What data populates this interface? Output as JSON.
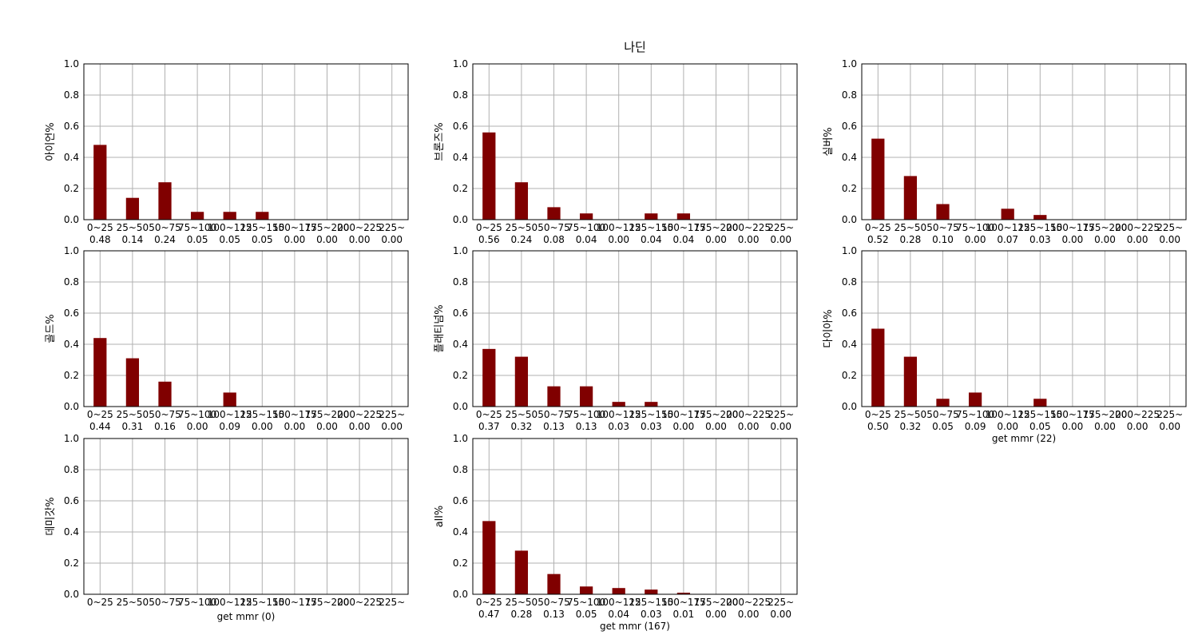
{
  "figure_title": "나딘",
  "chart_data": [
    {
      "type": "bar",
      "ylabel": "아이언%",
      "xlabel": "",
      "ylim": [
        0,
        1
      ],
      "yticks": [
        "0.0",
        "0.2",
        "0.4",
        "0.6",
        "0.8",
        "1.0"
      ],
      "categories": [
        "0~25",
        "25~50",
        "50~75",
        "75~100",
        "100~125",
        "125~150",
        "150~175",
        "175~200",
        "200~225",
        "225~"
      ],
      "values": [
        0.48,
        0.14,
        0.24,
        0.05,
        0.05,
        0.05,
        0.0,
        0.0,
        0.0,
        0.0
      ],
      "value_labels": [
        "0.48",
        "0.14",
        "0.24",
        "0.05",
        "0.05",
        "0.05",
        "0.00",
        "0.00",
        "0.00",
        "0.00"
      ],
      "grid": true
    },
    {
      "type": "bar",
      "ylabel": "브론즈%",
      "xlabel": "",
      "ylim": [
        0,
        1
      ],
      "yticks": [
        "0.0",
        "0.2",
        "0.4",
        "0.6",
        "0.8",
        "1.0"
      ],
      "categories": [
        "0~25",
        "25~50",
        "50~75",
        "75~100",
        "100~125",
        "125~150",
        "150~175",
        "175~200",
        "200~225",
        "225~"
      ],
      "values": [
        0.56,
        0.24,
        0.08,
        0.04,
        0.0,
        0.04,
        0.04,
        0.0,
        0.0,
        0.0
      ],
      "value_labels": [
        "0.56",
        "0.24",
        "0.08",
        "0.04",
        "0.00",
        "0.04",
        "0.04",
        "0.00",
        "0.00",
        "0.00"
      ],
      "grid": true
    },
    {
      "type": "bar",
      "ylabel": "실버%",
      "xlabel": "",
      "ylim": [
        0,
        1
      ],
      "yticks": [
        "0.0",
        "0.2",
        "0.4",
        "0.6",
        "0.8",
        "1.0"
      ],
      "categories": [
        "0~25",
        "25~50",
        "50~75",
        "75~100",
        "100~125",
        "125~150",
        "150~175",
        "175~200",
        "200~225",
        "225~"
      ],
      "values": [
        0.52,
        0.28,
        0.1,
        0.0,
        0.07,
        0.03,
        0.0,
        0.0,
        0.0,
        0.0
      ],
      "value_labels": [
        "0.52",
        "0.28",
        "0.10",
        "0.00",
        "0.07",
        "0.03",
        "0.00",
        "0.00",
        "0.00",
        "0.00"
      ],
      "grid": true
    },
    {
      "type": "bar",
      "ylabel": "골드%",
      "xlabel": "",
      "ylim": [
        0,
        1
      ],
      "yticks": [
        "0.0",
        "0.2",
        "0.4",
        "0.6",
        "0.8",
        "1.0"
      ],
      "categories": [
        "0~25",
        "25~50",
        "50~75",
        "75~100",
        "100~125",
        "125~150",
        "150~175",
        "175~200",
        "200~225",
        "225~"
      ],
      "values": [
        0.44,
        0.31,
        0.16,
        0.0,
        0.09,
        0.0,
        0.0,
        0.0,
        0.0,
        0.0
      ],
      "value_labels": [
        "0.44",
        "0.31",
        "0.16",
        "0.00",
        "0.09",
        "0.00",
        "0.00",
        "0.00",
        "0.00",
        "0.00"
      ],
      "grid": true
    },
    {
      "type": "bar",
      "ylabel": "플래티넘%",
      "xlabel": "",
      "ylim": [
        0,
        1
      ],
      "yticks": [
        "0.0",
        "0.2",
        "0.4",
        "0.6",
        "0.8",
        "1.0"
      ],
      "categories": [
        "0~25",
        "25~50",
        "50~75",
        "75~100",
        "100~125",
        "125~150",
        "150~175",
        "175~200",
        "200~225",
        "225~"
      ],
      "values": [
        0.37,
        0.32,
        0.13,
        0.13,
        0.03,
        0.03,
        0.0,
        0.0,
        0.0,
        0.0
      ],
      "value_labels": [
        "0.37",
        "0.32",
        "0.13",
        "0.13",
        "0.03",
        "0.03",
        "0.00",
        "0.00",
        "0.00",
        "0.00"
      ],
      "grid": true
    },
    {
      "type": "bar",
      "ylabel": "다이아%",
      "xlabel": "get mmr (22)",
      "ylim": [
        0,
        1
      ],
      "yticks": [
        "0.0",
        "0.2",
        "0.4",
        "0.6",
        "0.8",
        "1.0"
      ],
      "categories": [
        "0~25",
        "25~50",
        "50~75",
        "75~100",
        "100~125",
        "125~150",
        "150~175",
        "175~200",
        "200~225",
        "225~"
      ],
      "values": [
        0.5,
        0.32,
        0.05,
        0.09,
        0.0,
        0.05,
        0.0,
        0.0,
        0.0,
        0.0
      ],
      "value_labels": [
        "0.50",
        "0.32",
        "0.05",
        "0.09",
        "0.00",
        "0.05",
        "0.00",
        "0.00",
        "0.00",
        "0.00"
      ],
      "grid": true
    },
    {
      "type": "bar",
      "ylabel": "데미갓%",
      "xlabel": "get mmr (0)",
      "ylim": [
        0,
        1
      ],
      "yticks": [
        "0.0",
        "0.2",
        "0.4",
        "0.6",
        "0.8",
        "1.0"
      ],
      "categories": [
        "0~25",
        "25~50",
        "50~75",
        "75~100",
        "100~125",
        "125~150",
        "150~175",
        "175~200",
        "200~225",
        "225~"
      ],
      "values": [
        0,
        0,
        0,
        0,
        0,
        0,
        0,
        0,
        0,
        0
      ],
      "value_labels": [],
      "grid": true
    },
    {
      "type": "bar",
      "ylabel": "all%",
      "xlabel": "get mmr (167)",
      "ylim": [
        0,
        1
      ],
      "yticks": [
        "0.0",
        "0.2",
        "0.4",
        "0.6",
        "0.8",
        "1.0"
      ],
      "categories": [
        "0~25",
        "25~50",
        "50~75",
        "75~100",
        "100~125",
        "125~150",
        "150~175",
        "175~200",
        "200~225",
        "225~"
      ],
      "values": [
        0.47,
        0.28,
        0.13,
        0.05,
        0.04,
        0.03,
        0.01,
        0.0,
        0.0,
        0.0
      ],
      "value_labels": [
        "0.47",
        "0.28",
        "0.13",
        "0.05",
        "0.04",
        "0.03",
        "0.01",
        "0.00",
        "0.00",
        "0.00"
      ],
      "grid": true
    }
  ]
}
